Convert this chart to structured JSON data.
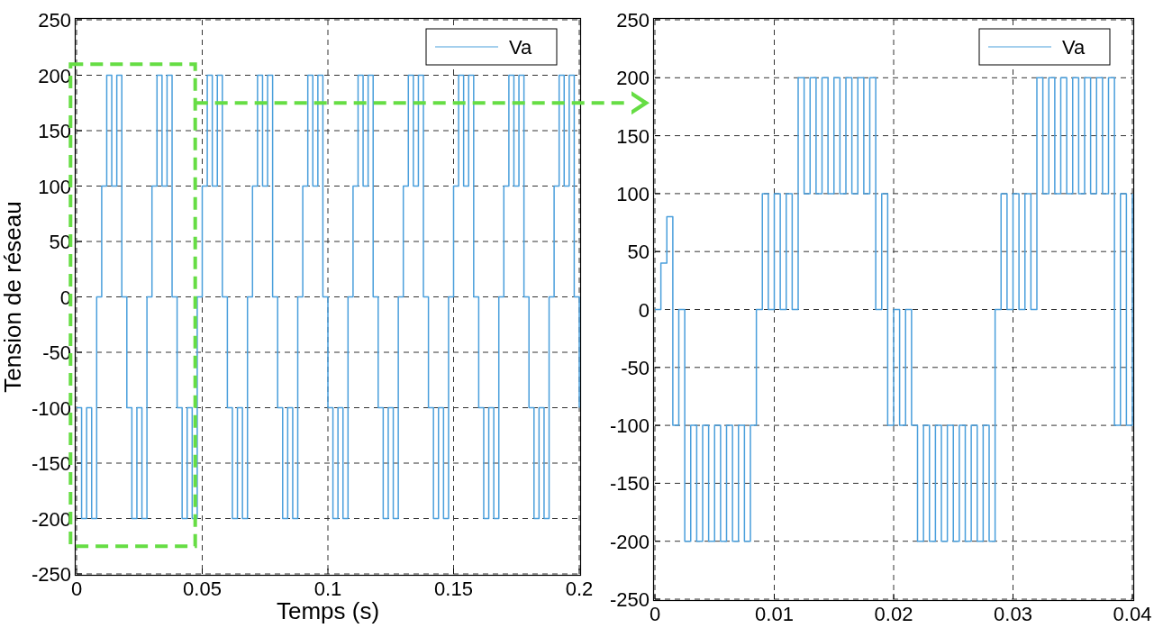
{
  "chart_data": [
    {
      "type": "step",
      "ylabel": "Tension de réseau",
      "xlabel": "Temps (s)",
      "x": [
        0,
        0.002,
        0.004,
        0.006,
        0.008,
        0.01,
        0.012,
        0.014,
        0.016,
        0.018,
        0.02,
        0.022,
        0.024,
        0.026,
        0.028,
        0.03,
        0.032,
        0.034,
        0.036,
        0.038,
        0.04,
        0.042,
        0.044,
        0.046,
        0.048,
        0.05,
        0.052,
        0.054,
        0.056,
        0.058,
        0.06,
        0.062,
        0.064,
        0.066,
        0.068,
        0.07,
        0.072,
        0.074,
        0.076,
        0.078,
        0.08,
        0.082,
        0.084,
        0.086,
        0.088,
        0.09,
        0.092,
        0.094,
        0.096,
        0.098,
        0.1,
        0.102,
        0.104,
        0.106,
        0.108,
        0.11,
        0.112,
        0.114,
        0.116,
        0.118,
        0.12,
        0.122,
        0.124,
        0.126,
        0.128,
        0.13,
        0.132,
        0.134,
        0.136,
        0.138,
        0.14,
        0.142,
        0.144,
        0.146,
        0.148,
        0.15,
        0.152,
        0.154,
        0.156,
        0.158,
        0.16,
        0.162,
        0.164,
        0.166,
        0.168,
        0.17,
        0.172,
        0.174,
        0.176,
        0.178,
        0.18,
        0.182,
        0.184,
        0.186,
        0.188,
        0.19,
        0.192,
        0.194,
        0.196,
        0.198,
        0.2
      ],
      "series": [
        {
          "name": "Va",
          "color": "#4a9fdc",
          "values": [
            -100,
            -200,
            -100,
            -200,
            0,
            100,
            200,
            100,
            200,
            0,
            -100,
            -200,
            -100,
            -200,
            0,
            100,
            200,
            100,
            200,
            0,
            -100,
            -200,
            -100,
            -200,
            0,
            100,
            200,
            100,
            200,
            0,
            -100,
            -200,
            -100,
            -200,
            0,
            100,
            200,
            100,
            200,
            0,
            -100,
            -200,
            -100,
            -200,
            0,
            100,
            200,
            100,
            200,
            0,
            -100,
            -200,
            -100,
            -200,
            0,
            100,
            200,
            100,
            200,
            0,
            -100,
            -200,
            -100,
            -200,
            0,
            100,
            200,
            100,
            200,
            0,
            -100,
            -200,
            -100,
            -200,
            0,
            100,
            200,
            100,
            200,
            0,
            -100,
            -200,
            -100,
            -200,
            0,
            100,
            200,
            100,
            200,
            0,
            -100,
            -200,
            -100,
            -200,
            0,
            100,
            200,
            100,
            200,
            0,
            -100
          ]
        }
      ],
      "xlim": [
        0,
        0.2
      ],
      "xticks": [
        0,
        0.05,
        0.1,
        0.15,
        0.2
      ],
      "ylim": [
        -250,
        250
      ],
      "yticks": [
        -250,
        -200,
        -150,
        -100,
        -50,
        0,
        50,
        100,
        150,
        200,
        250
      ],
      "grid": true,
      "legend": "top right",
      "marker": "none",
      "line_style": "solid"
    },
    {
      "type": "step",
      "x": [
        0,
        0.0005,
        0.001,
        0.0015,
        0.002,
        0.0025,
        0.003,
        0.0035,
        0.004,
        0.0045,
        0.005,
        0.0055,
        0.006,
        0.0065,
        0.007,
        0.0075,
        0.008,
        0.0085,
        0.009,
        0.0095,
        0.01,
        0.0105,
        0.011,
        0.0115,
        0.012,
        0.0125,
        0.013,
        0.0135,
        0.014,
        0.0145,
        0.015,
        0.0155,
        0.016,
        0.0165,
        0.017,
        0.0175,
        0.018,
        0.0185,
        0.019,
        0.0195,
        0.02,
        0.0205,
        0.021,
        0.0215,
        0.022,
        0.0225,
        0.023,
        0.0235,
        0.024,
        0.0245,
        0.025,
        0.0255,
        0.026,
        0.0265,
        0.027,
        0.0275,
        0.028,
        0.0285,
        0.029,
        0.0295,
        0.03,
        0.0305,
        0.031,
        0.0315,
        0.032,
        0.0325,
        0.033,
        0.0335,
        0.034,
        0.0345,
        0.035,
        0.0355,
        0.036,
        0.0365,
        0.037,
        0.0375,
        0.038,
        0.0385,
        0.039,
        0.0395,
        0.04
      ],
      "series": [
        {
          "name": "Va",
          "color": "#4a9fdc",
          "values": [
            0,
            40,
            80,
            -100,
            0,
            -200,
            -100,
            -200,
            -100,
            -200,
            -100,
            -200,
            -100,
            -200,
            -100,
            -200,
            -100,
            0,
            100,
            0,
            100,
            0,
            100,
            0,
            200,
            100,
            200,
            100,
            200,
            100,
            200,
            100,
            200,
            100,
            200,
            100,
            200,
            0,
            100,
            -100,
            0,
            -100,
            0,
            -100,
            -200,
            -100,
            -200,
            -100,
            -200,
            -100,
            -200,
            -100,
            -200,
            -100,
            -200,
            -100,
            -200,
            0,
            100,
            0,
            100,
            0,
            100,
            0,
            200,
            100,
            200,
            100,
            200,
            100,
            200,
            100,
            200,
            100,
            200,
            100,
            200,
            -100,
            100,
            -100,
            100
          ]
        }
      ],
      "xlim": [
        0,
        0.04
      ],
      "xticks": [
        0,
        0.01,
        0.02,
        0.03,
        0.04
      ],
      "ylim": [
        -250,
        250
      ],
      "yticks": [
        -250,
        -200,
        -150,
        -100,
        -50,
        0,
        50,
        100,
        150,
        200,
        250
      ],
      "grid": true,
      "legend": "top right",
      "marker": "none",
      "line_style": "solid"
    }
  ]
}
